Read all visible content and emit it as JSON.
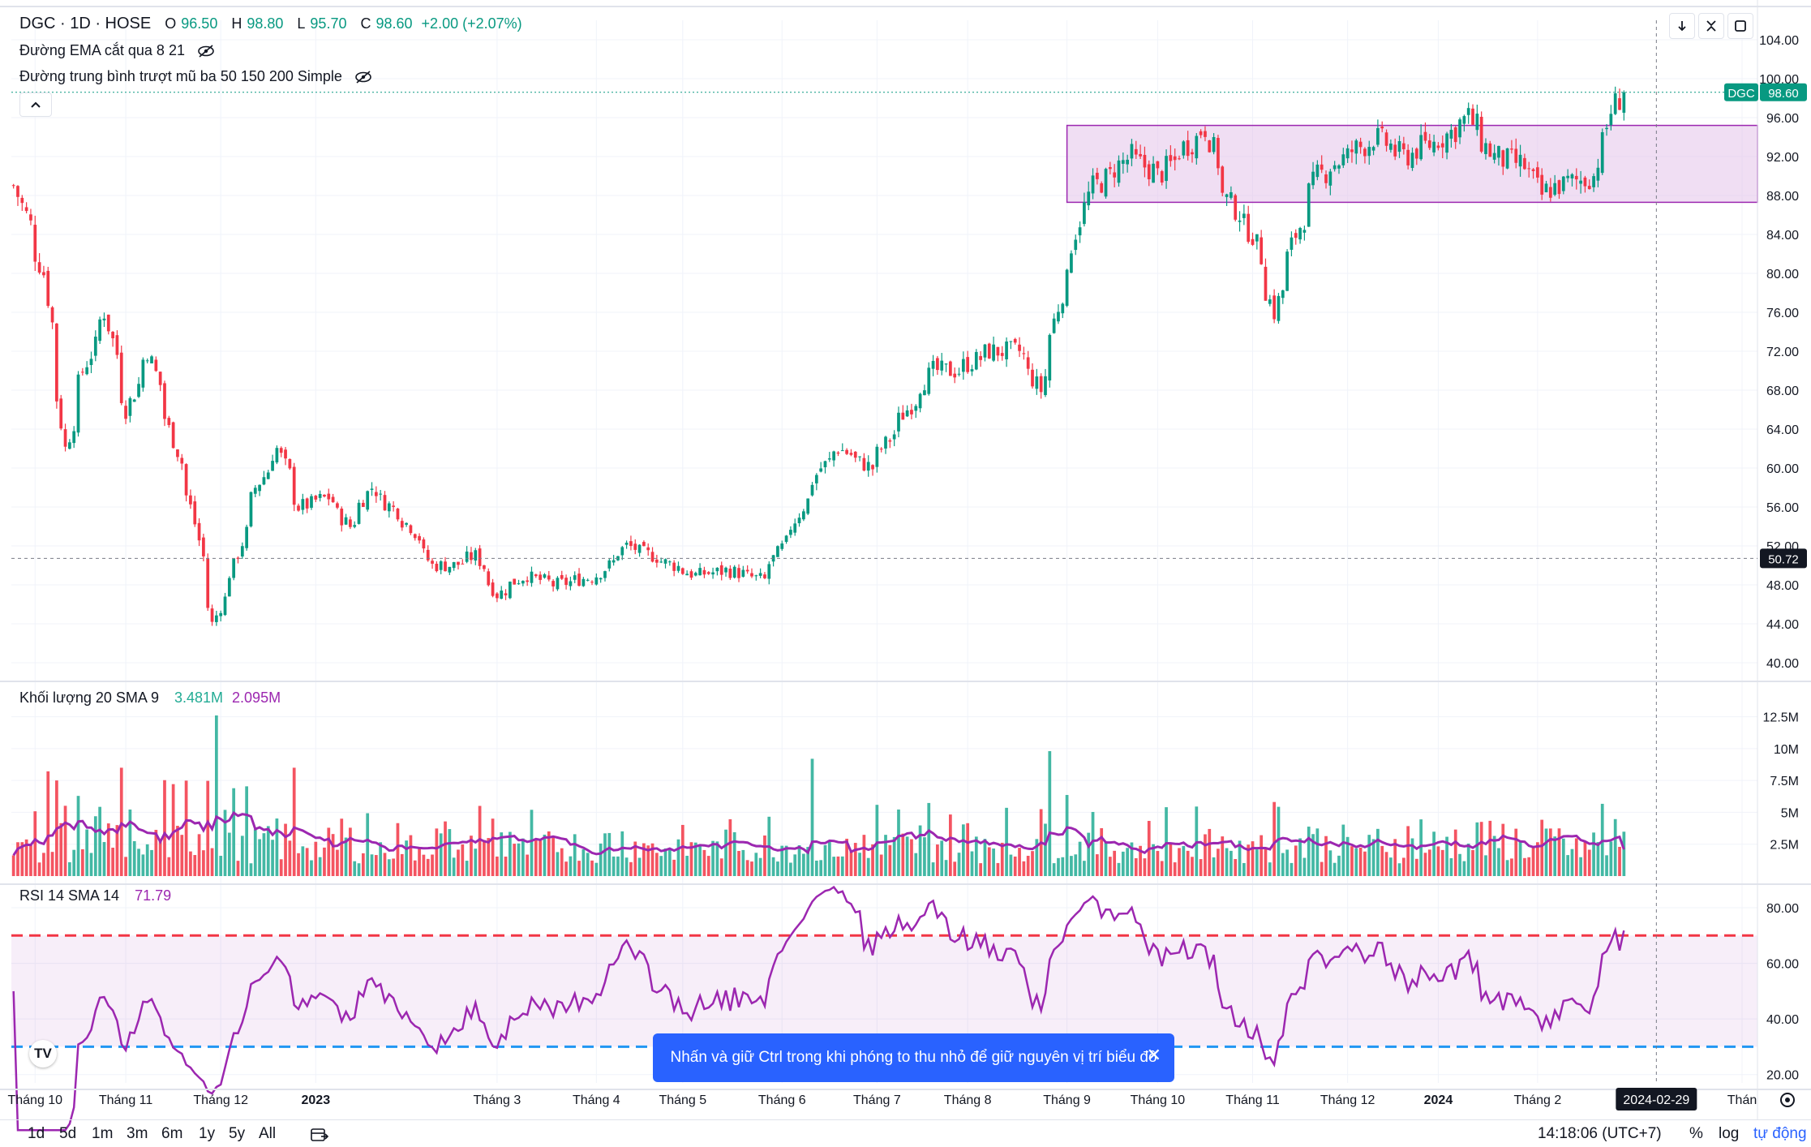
{
  "header": {
    "symbol_line": "DGC · 1D · HOSE",
    "open_label": "O",
    "open_value": "96.50",
    "high_label": "H",
    "high_value": "98.80",
    "low_label": "L",
    "low_value": "95.70",
    "close_label": "C",
    "close_value": "98.60",
    "change": "+2.00 (+2.07%)",
    "indicator_ema": "Đường EMA cắt qua 8 21",
    "indicator_ma": "Đường trung bình trượt mũ ba 50 150 200 Simple"
  },
  "toolbar": {
    "down_icon": "arrow-down-icon",
    "collapse_icon": "collapse-icon",
    "maximize_icon": "maximize-icon"
  },
  "price_labels": {
    "symbol_tag": "DGC",
    "last_price": "98.60",
    "crosshair_price": "50.72"
  },
  "volume_pane": {
    "title": "Khối lượng 20 SMA 9",
    "vol_value": "3.481M",
    "sma_value": "2.095M"
  },
  "rsi_pane": {
    "title": "RSI 14 SMA 14",
    "rsi_value": "71.79"
  },
  "x_axis": {
    "labels": [
      "Tháng 10",
      "Tháng 11",
      "Tháng 12",
      "2023",
      "Tháng 3",
      "Tháng 4",
      "Tháng 5",
      "Tháng 6",
      "Tháng 7",
      "Tháng 8",
      "Tháng 9",
      "Tháng 10",
      "Tháng 11",
      "Tháng 12",
      "2024",
      "Tháng 2",
      "Thán"
    ],
    "crosshair_date": "2024-02-29"
  },
  "toast": {
    "text": "Nhấn và giữ Ctrl trong khi phóng to thu nhỏ để giữ nguyên vị trí biểu đồ"
  },
  "bottom_bar": {
    "ranges": [
      "1d",
      "5d",
      "1m",
      "3m",
      "6m",
      "1y",
      "5y",
      "All"
    ],
    "time": "14:18:06 (UTC+7)",
    "percent": "%",
    "log": "log",
    "auto": "tự động"
  },
  "colors": {
    "up": "#089981",
    "down": "#f23645",
    "rsi": "#9c27b0",
    "sma": "#9c27b0",
    "zone": "#e1bee7",
    "upper_band": "#f23645",
    "lower_band": "#2196f3"
  },
  "chart_data": [
    {
      "type": "candlestick",
      "title": "DGC · 1D · HOSE",
      "price_axis_ticks": [
        "40.00",
        "44.00",
        "48.00",
        "52.00",
        "56.00",
        "60.00",
        "64.00",
        "68.00",
        "72.00",
        "76.00",
        "80.00",
        "84.00",
        "88.00",
        "92.00",
        "96.00",
        "100.00",
        "104.00"
      ],
      "ylim": [
        38.5,
        106
      ],
      "grid": true,
      "anchor_closes": [
        [
          "2022-09-26",
          89
        ],
        [
          "2022-10-05",
          80
        ],
        [
          "2022-10-12",
          62
        ],
        [
          "2022-10-18",
          70
        ],
        [
          "2022-10-25",
          76
        ],
        [
          "2022-11-01",
          66
        ],
        [
          "2022-11-08",
          72
        ],
        [
          "2022-11-15",
          64
        ],
        [
          "2022-11-22",
          56
        ],
        [
          "2022-11-29",
          44
        ],
        [
          "2022-12-06",
          50
        ],
        [
          "2022-12-13",
          58
        ],
        [
          "2022-12-20",
          62
        ],
        [
          "2022-12-27",
          56
        ],
        [
          "2023-01-05",
          57
        ],
        [
          "2023-01-12",
          54
        ],
        [
          "2023-01-19",
          58
        ],
        [
          "2023-02-01",
          54
        ],
        [
          "2023-02-08",
          50
        ],
        [
          "2023-02-15",
          50
        ],
        [
          "2023-02-22",
          51
        ],
        [
          "2023-03-01",
          47
        ],
        [
          "2023-03-10",
          49
        ],
        [
          "2023-03-20",
          48
        ],
        [
          "2023-04-03",
          49
        ],
        [
          "2023-04-12",
          52
        ],
        [
          "2023-04-20",
          51
        ],
        [
          "2023-05-04",
          49
        ],
        [
          "2023-05-15",
          49.5
        ],
        [
          "2023-05-26",
          48.5
        ],
        [
          "2023-06-05",
          54
        ],
        [
          "2023-06-14",
          60
        ],
        [
          "2023-06-20",
          62
        ],
        [
          "2023-06-30",
          60
        ],
        [
          "2023-07-10",
          65
        ],
        [
          "2023-07-20",
          70
        ],
        [
          "2023-07-28",
          70
        ],
        [
          "2023-08-08",
          72
        ],
        [
          "2023-08-17",
          72
        ],
        [
          "2023-08-24",
          68
        ],
        [
          "2023-08-31",
          78
        ],
        [
          "2023-09-08",
          88
        ],
        [
          "2023-09-15",
          90
        ],
        [
          "2023-09-22",
          92
        ],
        [
          "2023-10-02",
          90
        ],
        [
          "2023-10-10",
          93
        ],
        [
          "2023-10-17",
          95
        ],
        [
          "2023-10-23",
          88
        ],
        [
          "2023-11-01",
          84
        ],
        [
          "2023-11-08",
          76
        ],
        [
          "2023-11-15",
          84
        ],
        [
          "2023-11-22",
          90
        ],
        [
          "2023-12-01",
          92
        ],
        [
          "2023-12-11",
          94
        ],
        [
          "2023-12-20",
          92
        ],
        [
          "2024-01-02",
          94
        ],
        [
          "2024-01-10",
          96
        ],
        [
          "2024-01-18",
          92
        ],
        [
          "2024-01-29",
          91
        ],
        [
          "2024-02-02",
          88
        ],
        [
          "2024-02-08",
          89
        ],
        [
          "2024-02-20",
          90
        ],
        [
          "2024-02-23",
          95
        ],
        [
          "2024-02-29",
          98.6
        ]
      ],
      "last": {
        "open": 96.5,
        "high": 98.8,
        "low": 95.7,
        "close": 98.6,
        "change": 2.0,
        "change_pct": 2.07
      },
      "resistance_zone": {
        "from": "2023-09-01",
        "price_top": 95.2,
        "price_bottom": 87.3
      }
    },
    {
      "type": "bar",
      "title": "Khối lượng 20 SMA 9",
      "axis_ticks": [
        "2.5M",
        "5M",
        "7.5M",
        "10M",
        "12.5M"
      ],
      "ylim": [
        0,
        14
      ],
      "last_volume_m": 3.481,
      "last_sma_m": 2.095,
      "notable_volume_m": {
        "2022-11-30": 12.6,
        "2023-08-28": 9.8,
        "2023-06-12": 9.2
      }
    },
    {
      "type": "line",
      "title": "RSI 14 SMA 14",
      "axis_ticks": [
        "20.00",
        "40.00",
        "60.00",
        "80.00"
      ],
      "ylim": [
        17,
        87
      ],
      "bands": {
        "upper": 70,
        "lower": 30
      },
      "last_value": 71.79
    }
  ]
}
